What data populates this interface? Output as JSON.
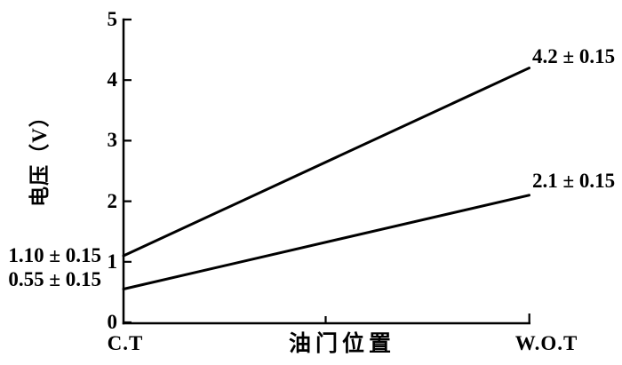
{
  "chart_data": {
    "type": "line",
    "title": "",
    "xlabel": "油门位置",
    "ylabel": "电压（V）",
    "x_categories": [
      "C.T",
      "W.O.T"
    ],
    "ylim": [
      0,
      5
    ],
    "yticks": [
      0,
      1,
      2,
      3,
      4,
      5
    ],
    "grid": false,
    "legend": "none",
    "line_color": "#000000",
    "background_color": "#ffffff",
    "series": [
      {
        "values": [
          1.1,
          4.2
        ],
        "start_label": "1.10 ± 0.15",
        "end_label": "4.2 ± 0.15"
      },
      {
        "values": [
          0.55,
          2.1
        ],
        "start_label": "0.55 ± 0.15",
        "end_label": "2.1 ± 0.15"
      }
    ]
  }
}
